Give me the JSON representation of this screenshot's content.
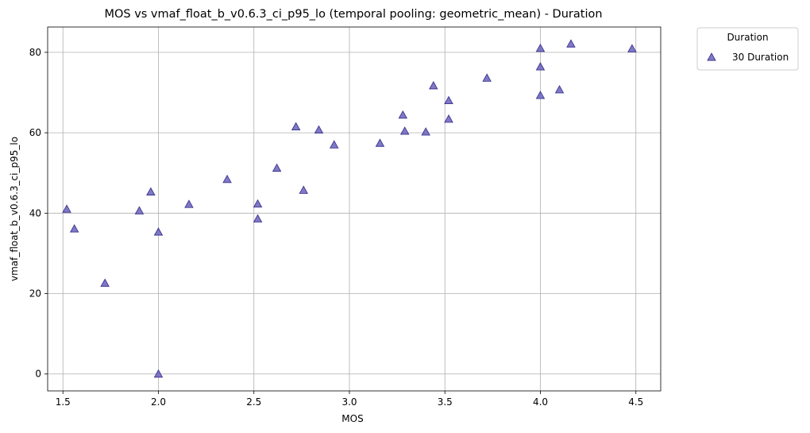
{
  "chart_data": {
    "type": "scatter",
    "title": "MOS vs vmaf_float_b_v0.6.3_ci_p95_lo (temporal pooling: geometric_mean) - Duration",
    "xlabel": "MOS",
    "ylabel": "vmaf_float_b_v0.6.3_ci_p95_lo",
    "xlim": [
      1.42,
      4.63
    ],
    "ylim": [
      -4.2,
      86.3
    ],
    "xticks": [
      1.5,
      2.0,
      2.5,
      3.0,
      3.5,
      4.0,
      4.5
    ],
    "xtick_labels": [
      "1.5",
      "2.0",
      "2.5",
      "3.0",
      "3.5",
      "4.0",
      "4.5"
    ],
    "yticks": [
      0,
      20,
      40,
      60,
      80
    ],
    "ytick_labels": [
      "0",
      "20",
      "40",
      "60",
      "80"
    ],
    "grid": true,
    "legend": {
      "title": "Duration",
      "placement": "outside-top-right"
    },
    "series": [
      {
        "name": "30 Duration",
        "marker": "triangle",
        "color": "#6a61bb",
        "edge_color": "#3b3590",
        "points": [
          {
            "x": 1.52,
            "y": 41.0
          },
          {
            "x": 1.56,
            "y": 36.1
          },
          {
            "x": 1.72,
            "y": 22.6
          },
          {
            "x": 1.9,
            "y": 40.6
          },
          {
            "x": 1.96,
            "y": 45.3
          },
          {
            "x": 2.0,
            "y": 35.3
          },
          {
            "x": 2.0,
            "y": 0.0
          },
          {
            "x": 2.16,
            "y": 42.2
          },
          {
            "x": 2.36,
            "y": 48.4
          },
          {
            "x": 2.52,
            "y": 42.3
          },
          {
            "x": 2.52,
            "y": 38.6
          },
          {
            "x": 2.62,
            "y": 51.2
          },
          {
            "x": 2.72,
            "y": 61.5
          },
          {
            "x": 2.76,
            "y": 45.7
          },
          {
            "x": 2.84,
            "y": 60.7
          },
          {
            "x": 2.92,
            "y": 57.0
          },
          {
            "x": 3.16,
            "y": 57.4
          },
          {
            "x": 3.28,
            "y": 64.4
          },
          {
            "x": 3.29,
            "y": 60.4
          },
          {
            "x": 3.4,
            "y": 60.2
          },
          {
            "x": 3.44,
            "y": 71.7
          },
          {
            "x": 3.52,
            "y": 68.0
          },
          {
            "x": 3.52,
            "y": 63.4
          },
          {
            "x": 3.72,
            "y": 73.6
          },
          {
            "x": 4.0,
            "y": 81.0
          },
          {
            "x": 4.0,
            "y": 76.4
          },
          {
            "x": 4.0,
            "y": 69.3
          },
          {
            "x": 4.1,
            "y": 70.7
          },
          {
            "x": 4.16,
            "y": 82.1
          },
          {
            "x": 4.48,
            "y": 80.9
          }
        ]
      }
    ]
  }
}
